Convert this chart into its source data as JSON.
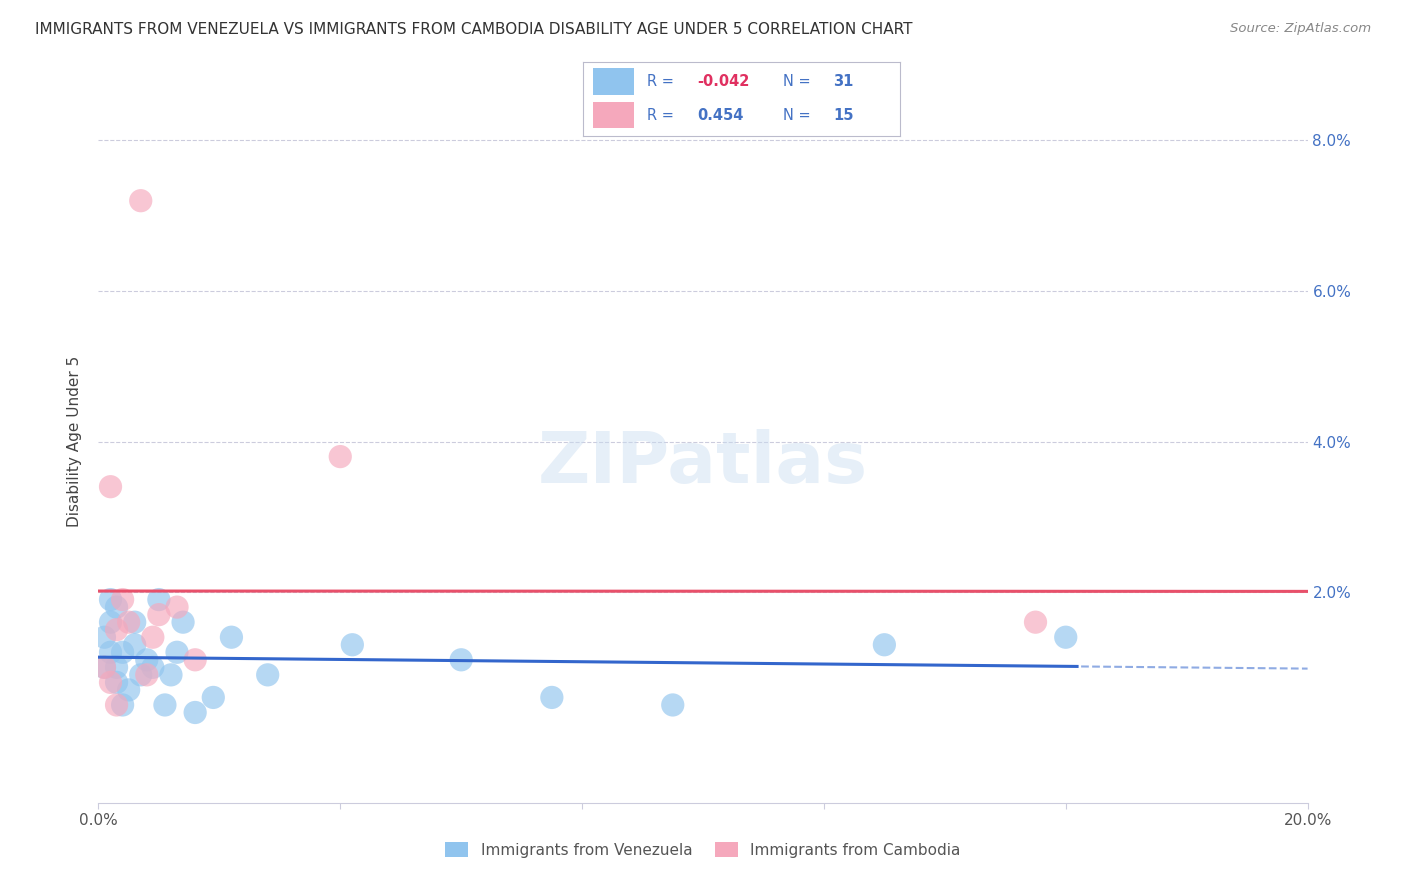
{
  "title": "IMMIGRANTS FROM VENEZUELA VS IMMIGRANTS FROM CAMBODIA DISABILITY AGE UNDER 5 CORRELATION CHART",
  "source": "Source: ZipAtlas.com",
  "ylabel": "Disability Age Under 5",
  "xlim": [
    0,
    0.2
  ],
  "ylim": [
    -0.008,
    0.088
  ],
  "xticks": [
    0.0,
    0.04,
    0.08,
    0.12,
    0.16,
    0.2
  ],
  "xtick_labels": [
    "0.0%",
    "",
    "",
    "",
    "",
    "20.0%"
  ],
  "yticks": [
    0.0,
    0.02,
    0.04,
    0.06,
    0.08
  ],
  "ytick_labels_right": [
    "",
    "2.0%",
    "4.0%",
    "6.0%",
    "8.0%"
  ],
  "R_venezuela": -0.042,
  "N_venezuela": 31,
  "R_cambodia": 0.454,
  "N_cambodia": 15,
  "color_venezuela": "#90C4EE",
  "color_cambodia": "#F5A8BC",
  "trendline_venezuela": "#3366CC",
  "trendline_cambodia": "#E8506A",
  "watermark": "ZIPatlas",
  "venezuela_x": [
    0.001,
    0.001,
    0.002,
    0.002,
    0.002,
    0.003,
    0.003,
    0.003,
    0.004,
    0.004,
    0.005,
    0.006,
    0.006,
    0.007,
    0.008,
    0.009,
    0.01,
    0.011,
    0.012,
    0.013,
    0.014,
    0.016,
    0.019,
    0.022,
    0.028,
    0.042,
    0.06,
    0.075,
    0.095,
    0.13,
    0.16
  ],
  "venezuela_y": [
    0.01,
    0.014,
    0.012,
    0.016,
    0.019,
    0.008,
    0.01,
    0.018,
    0.005,
    0.012,
    0.007,
    0.016,
    0.013,
    0.009,
    0.011,
    0.01,
    0.019,
    0.005,
    0.009,
    0.012,
    0.016,
    0.004,
    0.006,
    0.014,
    0.009,
    0.013,
    0.011,
    0.006,
    0.005,
    0.013,
    0.014
  ],
  "cambodia_x": [
    0.001,
    0.002,
    0.002,
    0.003,
    0.003,
    0.004,
    0.005,
    0.007,
    0.008,
    0.009,
    0.01,
    0.013,
    0.016,
    0.04,
    0.155
  ],
  "cambodia_y": [
    0.01,
    0.034,
    0.008,
    0.015,
    0.005,
    0.019,
    0.016,
    0.072,
    0.009,
    0.014,
    0.017,
    0.018,
    0.011,
    0.038,
    0.016
  ]
}
